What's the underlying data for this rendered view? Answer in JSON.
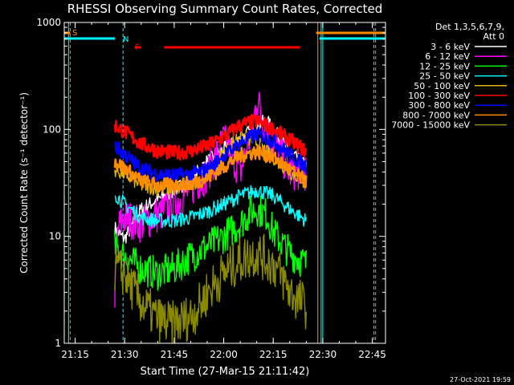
{
  "chart_data": {
    "type": "line",
    "title": "RHESSI Observing Summary Count Rates, Corrected",
    "xlabel": "Start Time (27-Mar-15 21:11:42)",
    "ylabel": "Corrected Count Rate (s⁻¹ detector⁻¹)",
    "footer": "27-Oct-2021 19:59",
    "yscale": "log",
    "ylim": [
      1,
      1000
    ],
    "xlim": [
      "21:11:42",
      "22:49:00"
    ],
    "x_ticks": [
      "21:15",
      "21:30",
      "21:45",
      "22:00",
      "22:15",
      "22:30",
      "22:45"
    ],
    "y_ticks": [
      "1",
      "10",
      "100",
      "1000"
    ],
    "grid": false,
    "legend": {
      "placement": "top-right",
      "header": [
        "Det 1,3,5,6,7,9,",
        "Att 0"
      ],
      "entries": [
        {
          "name": "3 - 6 keV",
          "color": "#ffffff"
        },
        {
          "name": "6 - 12 keV",
          "color": "#ff00ff"
        },
        {
          "name": "12 - 25 keV",
          "color": "#00ff00"
        },
        {
          "name": "25 - 50 keV",
          "color": "#00ffff"
        },
        {
          "name": "50 - 100 keV",
          "color": "#e6b400"
        },
        {
          "name": "100 - 300 keV",
          "color": "#ff0000"
        },
        {
          "name": "300 - 800 keV",
          "color": "#0000ff"
        },
        {
          "name": "800 - 7000 keV",
          "color": "#ff8c00"
        },
        {
          "name": "7000 - 15000 keV",
          "color": "#8a8a00"
        }
      ]
    },
    "flag_labels": [
      {
        "text": "S",
        "color": "#ff8c00"
      },
      {
        "text": "N",
        "color": "#00ffff"
      },
      {
        "text": "F",
        "color": "#ff0000"
      }
    ],
    "series": [
      {
        "name": "3 - 6 keV",
        "color": "#ffffff",
        "x": [
          "21:27:00",
          "21:28:00",
          "21:29:00",
          "21:30:00",
          "21:35:00",
          "21:40:00",
          "21:45:00",
          "21:50:00",
          "21:55:00",
          "22:00:00",
          "22:05:00",
          "22:10:00",
          "22:13:00",
          "22:15:00",
          "22:20:00",
          "22:25:00"
        ],
        "y": [
          12,
          11,
          10,
          9.5,
          18,
          22,
          27,
          34,
          50,
          65,
          80,
          110,
          120,
          100,
          60,
          45
        ]
      },
      {
        "name": "6 - 12 keV",
        "color": "#ff00ff",
        "x": [
          "21:27:00",
          "21:28:00",
          "21:30:00",
          "21:35:00",
          "21:40:00",
          "21:45:00",
          "21:50:00",
          "21:55:00",
          "22:00:00",
          "22:05:00",
          "22:09:00",
          "22:10:00",
          "22:12:00",
          "22:15:00",
          "22:17:00",
          "22:20:00",
          "22:25:00"
        ],
        "y": [
          3,
          12,
          15,
          13,
          16,
          20,
          28,
          38,
          80,
          40,
          110,
          200,
          120,
          70,
          60,
          40,
          40
        ]
      },
      {
        "name": "12 - 25 keV",
        "color": "#00ff00",
        "x": [
          "21:27:00",
          "21:30:00",
          "21:35:00",
          "21:40:00",
          "21:45:00",
          "21:50:00",
          "21:55:00",
          "22:00:00",
          "22:05:00",
          "22:08:00",
          "22:10:00",
          "22:13:00",
          "22:15:00",
          "22:20:00",
          "22:25:00"
        ],
        "y": [
          8,
          6.5,
          5,
          4.5,
          5,
          6.5,
          8,
          10,
          13,
          17,
          18,
          16,
          11,
          7,
          5.5
        ]
      },
      {
        "name": "25 - 50 keV",
        "color": "#00ffff",
        "x": [
          "21:27:00",
          "21:30:00",
          "21:35:00",
          "21:40:00",
          "21:45:00",
          "21:50:00",
          "21:55:00",
          "22:00:00",
          "22:05:00",
          "22:10:00",
          "22:15:00",
          "22:20:00",
          "22:25:00"
        ],
        "y": [
          25,
          20,
          15,
          14,
          14,
          15,
          17,
          20,
          24,
          27,
          24,
          18,
          14
        ]
      },
      {
        "name": "50 - 100 keV",
        "color": "#e6b400",
        "x": [
          "21:27:00",
          "21:30:00",
          "21:35:00",
          "21:40:00",
          "21:45:00",
          "21:50:00",
          "21:55:00",
          "22:00:00",
          "22:05:00",
          "22:10:00",
          "22:15:00",
          "22:20:00",
          "22:25:00"
        ],
        "y": [
          42,
          38,
          30,
          28,
          28,
          30,
          38,
          60,
          90,
          75,
          55,
          40,
          33
        ]
      },
      {
        "name": "100 - 300 keV",
        "color": "#ff0000",
        "x": [
          "21:27:00",
          "21:30:00",
          "21:35:00",
          "21:40:00",
          "21:45:00",
          "21:50:00",
          "21:55:00",
          "22:00:00",
          "22:05:00",
          "22:10:00",
          "22:15:00",
          "22:20:00",
          "22:25:00"
        ],
        "y": [
          110,
          95,
          73,
          63,
          60,
          63,
          70,
          85,
          110,
          120,
          100,
          80,
          62
        ]
      },
      {
        "name": "300 - 800 keV",
        "color": "#0000ff",
        "x": [
          "21:27:00",
          "21:30:00",
          "21:35:00",
          "21:40:00",
          "21:45:00",
          "21:50:00",
          "21:55:00",
          "22:00:00",
          "22:05:00",
          "22:10:00",
          "22:15:00",
          "22:20:00",
          "22:25:00"
        ],
        "y": [
          70,
          58,
          43,
          38,
          37,
          38,
          42,
          56,
          75,
          90,
          78,
          58,
          45
        ]
      },
      {
        "name": "800 - 7000 keV",
        "color": "#ff8c00",
        "x": [
          "21:27:00",
          "21:30:00",
          "21:35:00",
          "21:40:00",
          "21:45:00",
          "21:50:00",
          "21:55:00",
          "22:00:00",
          "22:05:00",
          "22:10:00",
          "22:15:00",
          "22:20:00",
          "22:25:00"
        ],
        "y": [
          50,
          43,
          33,
          30,
          30,
          31,
          35,
          45,
          57,
          62,
          55,
          42,
          32
        ]
      },
      {
        "name": "7000 - 15000 keV",
        "color": "#8a8a00",
        "x": [
          "21:27:00",
          "21:30:00",
          "21:33:00",
          "21:36:00",
          "21:40:00",
          "21:44:00",
          "21:47:00",
          "21:50:00",
          "21:53:00",
          "21:55:00",
          "22:00:00",
          "22:05:00",
          "22:10:00",
          "22:15:00",
          "22:18:00",
          "22:20:00",
          "22:25:00"
        ],
        "y": [
          5,
          4.5,
          3,
          2.2,
          1.7,
          1.5,
          1.6,
          1.8,
          2.3,
          3,
          4.5,
          6,
          7,
          5.5,
          4,
          3,
          2.2
        ]
      }
    ],
    "flag_bars": [
      {
        "label": "S",
        "color": "#ff8c00",
        "segments": [
          [
            "21:11:42",
            "21:13:30"
          ],
          [
            "22:28:00",
            "22:49:00"
          ]
        ]
      },
      {
        "label": "N",
        "color": "#00ffff",
        "segments": [
          [
            "21:11:42",
            "21:27:00"
          ],
          [
            "22:29:00",
            "22:49:00"
          ]
        ]
      },
      {
        "label": "F",
        "color": "#ff0000",
        "segments": [
          [
            "21:33:00",
            "21:35:00"
          ],
          [
            "21:42:00",
            "22:23:00"
          ]
        ]
      }
    ],
    "vertical_markers": [
      {
        "x": "21:13:30",
        "color": "#ff8c00",
        "style": "dashed"
      },
      {
        "x": "21:13:00",
        "color": "#00ffff",
        "style": "solid"
      },
      {
        "x": "21:29:30",
        "color": "#00ffff",
        "style": "dashed"
      },
      {
        "x": "22:28:30",
        "color": "#ff8c00",
        "style": "solid"
      },
      {
        "x": "22:29:30",
        "color": "#00ffff",
        "style": "solid"
      },
      {
        "x": "22:30:00",
        "color": "#00ffff",
        "style": "solid"
      },
      {
        "x": "22:45:30",
        "color": "#00ffff",
        "style": "dashed"
      },
      {
        "x": "22:46:00",
        "color": "#ff8c00",
        "style": "dashed"
      }
    ]
  }
}
